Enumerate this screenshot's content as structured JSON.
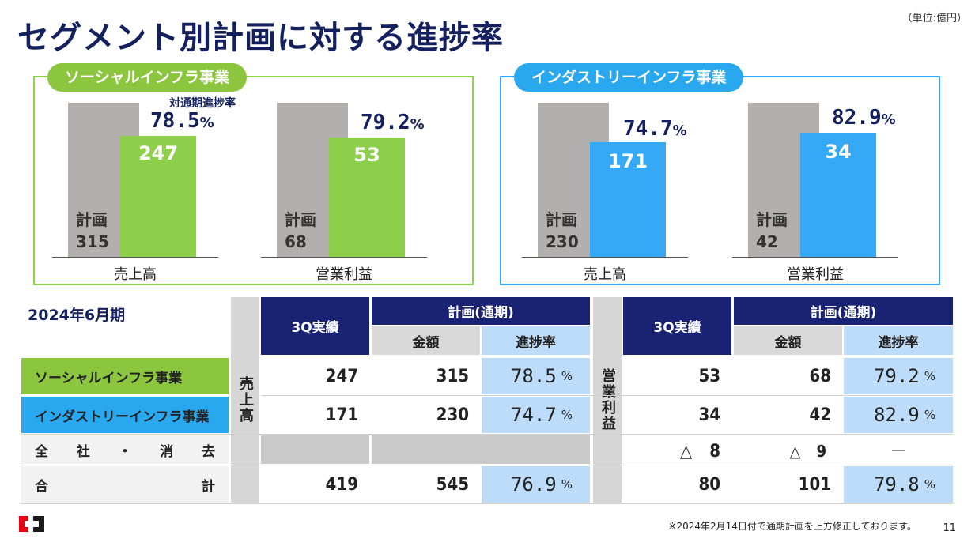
{
  "title": "セグメント別計画に対する進捗率",
  "unit": "（単位:億円）",
  "social_panel": {
    "label": "ソーシャルインフラ事業",
    "progress_label": "対通期進捗率",
    "sales": {
      "plan_label": "計画",
      "plan": "315",
      "actual": "247",
      "pct": "78.5",
      "category": "売上高"
    },
    "profit": {
      "plan_label": "計画",
      "plan": "68",
      "actual": "53",
      "pct": "79.2",
      "category": "営業利益"
    }
  },
  "industry_panel": {
    "label": "インダストリーインフラ事業",
    "sales": {
      "plan_label": "計画",
      "plan": "230",
      "actual": "171",
      "pct": "74.7",
      "category": "売上高"
    },
    "profit": {
      "plan_label": "計画",
      "plan": "42",
      "actual": "34",
      "pct": "82.9",
      "category": "営業利益"
    }
  },
  "pct_unit": "%",
  "chart_data": [
    {
      "type": "bar",
      "title": "ソーシャルインフラ事業 売上高",
      "categories": [
        "計画",
        "3Q実績"
      ],
      "values": [
        315,
        247
      ],
      "progress_pct": 78.5
    },
    {
      "type": "bar",
      "title": "ソーシャルインフラ事業 営業利益",
      "categories": [
        "計画",
        "3Q実績"
      ],
      "values": [
        68,
        53
      ],
      "progress_pct": 79.2
    },
    {
      "type": "bar",
      "title": "インダストリーインフラ事業 売上高",
      "categories": [
        "計画",
        "3Q実績"
      ],
      "values": [
        230,
        171
      ],
      "progress_pct": 74.7
    },
    {
      "type": "bar",
      "title": "インダストリーインフラ事業 営業利益",
      "categories": [
        "計画",
        "3Q実績"
      ],
      "values": [
        42,
        34
      ],
      "progress_pct": 82.9
    }
  ],
  "table": {
    "period": "2024年6月期",
    "sales_group": "売上高",
    "profit_group": "営業利益",
    "h_actual": "3Q実績",
    "h_plan": "計画(通期)",
    "h_amount": "金額",
    "h_rate": "進捗率",
    "pct_unit": "%",
    "rows": [
      {
        "label": "ソーシャルインフラ事業",
        "s_act": "247",
        "s_plan": "315",
        "s_rate": "78.5",
        "p_act": "53",
        "p_plan": "68",
        "p_rate": "79.2"
      },
      {
        "label": "インダストリーインフラ事業",
        "s_act": "171",
        "s_plan": "230",
        "s_rate": "74.7",
        "p_act": "34",
        "p_plan": "42",
        "p_rate": "82.9"
      },
      {
        "label_chars": [
          "全",
          "社",
          "・",
          "消",
          "去"
        ],
        "p_act": "△　8",
        "p_plan": "△　9",
        "p_rate": "－"
      },
      {
        "label_chars": [
          "合",
          "計"
        ],
        "s_act": "419",
        "s_plan": "545",
        "s_rate": "76.9",
        "p_act": "80",
        "p_plan": "101",
        "p_rate": "79.8"
      }
    ]
  },
  "footnote": "※2024年2月14日付で通期計画を上方修正しております。",
  "page_number": "11"
}
